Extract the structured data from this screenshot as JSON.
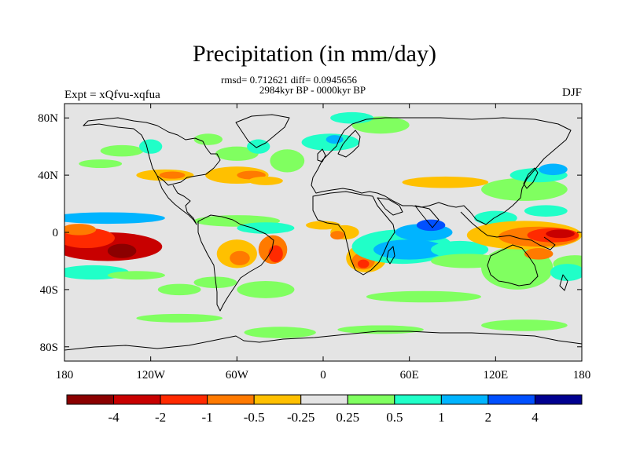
{
  "title": "Precipitation (in mm/day)",
  "stats_line1": "rmsd= 0.712621 diff= 0.0945656",
  "stats_line2": "2984kyr BP - 0000kyr BP",
  "experiment": "Expt = xQfvu-xqfua",
  "season": "DJF",
  "map": {
    "projection": "cylindrical-equidistant",
    "lon_range": [
      -180,
      180
    ],
    "lat_range": [
      -90,
      90
    ],
    "background_color": "#e4e4e4",
    "x_ticks": [
      {
        "lon": -180,
        "label": "180"
      },
      {
        "lon": -120,
        "label": "120W"
      },
      {
        "lon": -60,
        "label": "60W"
      },
      {
        "lon": 0,
        "label": "0"
      },
      {
        "lon": 60,
        "label": "60E"
      },
      {
        "lon": 120,
        "label": "120E"
      },
      {
        "lon": 180,
        "label": "180"
      }
    ],
    "y_ticks": [
      {
        "lat": 80,
        "label": "80N"
      },
      {
        "lat": 40,
        "label": "40N"
      },
      {
        "lat": 0,
        "label": "0"
      },
      {
        "lat": -40,
        "label": "40S"
      },
      {
        "lat": -80,
        "label": "80S"
      }
    ]
  },
  "colorbar": {
    "colors": [
      "#8b0000",
      "#c80000",
      "#ff2a00",
      "#ff7a00",
      "#ffc000",
      "#e4e4e4",
      "#80ff60",
      "#20ffc8",
      "#00b4ff",
      "#0050ff",
      "#000090"
    ],
    "labels": [
      "-4",
      "-2",
      "-1",
      "-0.5",
      "-0.25",
      "0.25",
      "0.5",
      "1",
      "2",
      "4"
    ]
  },
  "anomalies": [
    {
      "lon": -150,
      "lat": -10,
      "rx": 38,
      "ry": 10,
      "level": -4
    },
    {
      "lon": -165,
      "lat": -4,
      "rx": 20,
      "ry": 7,
      "level": -2
    },
    {
      "lon": -140,
      "lat": -13,
      "rx": 10,
      "ry": 5,
      "level": -5
    },
    {
      "lon": -170,
      "lat": 2,
      "rx": 12,
      "ry": 4,
      "level": -1
    },
    {
      "lon": -150,
      "lat": 10,
      "rx": 40,
      "ry": 4,
      "level": 2
    },
    {
      "lon": -160,
      "lat": -28,
      "rx": 25,
      "ry": 5,
      "level": 1
    },
    {
      "lon": -130,
      "lat": -30,
      "rx": 20,
      "ry": 3,
      "level": 0.5
    },
    {
      "lon": -110,
      "lat": 40,
      "rx": 20,
      "ry": 4,
      "level": -0.5
    },
    {
      "lon": -105,
      "lat": 40,
      "rx": 9,
      "ry": 2.5,
      "level": -1
    },
    {
      "lon": -155,
      "lat": 48,
      "rx": 15,
      "ry": 3,
      "level": 0.5
    },
    {
      "lon": -60,
      "lat": 40,
      "rx": 22,
      "ry": 6,
      "level": -0.5
    },
    {
      "lon": -50,
      "lat": 40,
      "rx": 10,
      "ry": 3,
      "level": -1
    },
    {
      "lon": -40,
      "lat": 36,
      "rx": 12,
      "ry": 3,
      "level": -0.5
    },
    {
      "lon": -60,
      "lat": 55,
      "rx": 15,
      "ry": 5,
      "level": 0.5
    },
    {
      "lon": -45,
      "lat": 60,
      "rx": 8,
      "ry": 5,
      "level": 1
    },
    {
      "lon": -25,
      "lat": 50,
      "rx": 12,
      "ry": 8,
      "level": 0.5
    },
    {
      "lon": -80,
      "lat": 65,
      "rx": 10,
      "ry": 4,
      "level": 0.5
    },
    {
      "lon": -60,
      "lat": 8,
      "rx": 30,
      "ry": 4,
      "level": 0.5
    },
    {
      "lon": -40,
      "lat": 3,
      "rx": 20,
      "ry": 4,
      "level": 1
    },
    {
      "lon": -60,
      "lat": -15,
      "rx": 14,
      "ry": 10,
      "level": -0.5
    },
    {
      "lon": -58,
      "lat": -18,
      "rx": 7,
      "ry": 5,
      "level": -1
    },
    {
      "lon": -35,
      "lat": -12,
      "rx": 10,
      "ry": 10,
      "level": -1
    },
    {
      "lon": -33,
      "lat": -15,
      "rx": 5,
      "ry": 6,
      "level": -2
    },
    {
      "lon": -75,
      "lat": -35,
      "rx": 15,
      "ry": 4,
      "level": 0.5
    },
    {
      "lon": -40,
      "lat": -40,
      "rx": 20,
      "ry": 6,
      "level": 0.5
    },
    {
      "lon": -100,
      "lat": -40,
      "rx": 15,
      "ry": 4,
      "level": 0.5
    },
    {
      "lon": 0,
      "lat": 5,
      "rx": 12,
      "ry": 3,
      "level": -0.5
    },
    {
      "lon": 15,
      "lat": 0,
      "rx": 10,
      "ry": 5,
      "level": -0.5
    },
    {
      "lon": 10,
      "lat": -2,
      "rx": 5,
      "ry": 3,
      "level": -1
    },
    {
      "lon": 30,
      "lat": -18,
      "rx": 14,
      "ry": 10,
      "level": -0.5
    },
    {
      "lon": 28,
      "lat": -20,
      "rx": 8,
      "ry": 6,
      "level": -1
    },
    {
      "lon": 28,
      "lat": -22,
      "rx": 4,
      "ry": 3,
      "level": -2
    },
    {
      "lon": 55,
      "lat": -10,
      "rx": 35,
      "ry": 12,
      "level": 1
    },
    {
      "lon": 60,
      "lat": -12,
      "rx": 25,
      "ry": 7,
      "level": 2
    },
    {
      "lon": 70,
      "lat": 0,
      "rx": 20,
      "ry": 6,
      "level": 2
    },
    {
      "lon": 75,
      "lat": 5,
      "rx": 10,
      "ry": 4,
      "level": 4
    },
    {
      "lon": 95,
      "lat": -12,
      "rx": 20,
      "ry": 6,
      "level": 1
    },
    {
      "lon": 100,
      "lat": -20,
      "rx": 25,
      "ry": 5,
      "level": 0.5
    },
    {
      "lon": 135,
      "lat": -25,
      "rx": 25,
      "ry": 15,
      "level": 0.5
    },
    {
      "lon": 120,
      "lat": 10,
      "rx": 15,
      "ry": 5,
      "level": 1
    },
    {
      "lon": 140,
      "lat": -2,
      "rx": 40,
      "ry": 10,
      "level": -0.5
    },
    {
      "lon": 150,
      "lat": -3,
      "rx": 28,
      "ry": 7,
      "level": -1
    },
    {
      "lon": 160,
      "lat": -2,
      "rx": 18,
      "ry": 5,
      "level": -2
    },
    {
      "lon": 165,
      "lat": -1,
      "rx": 10,
      "ry": 3,
      "level": -4
    },
    {
      "lon": 175,
      "lat": -22,
      "rx": 15,
      "ry": 6,
      "level": 0.5
    },
    {
      "lon": 170,
      "lat": -28,
      "rx": 12,
      "ry": 6,
      "level": 1
    },
    {
      "lon": 150,
      "lat": -15,
      "rx": 10,
      "ry": 4,
      "level": -1
    },
    {
      "lon": 140,
      "lat": 30,
      "rx": 30,
      "ry": 8,
      "level": 0.5
    },
    {
      "lon": 150,
      "lat": 40,
      "rx": 20,
      "ry": 5,
      "level": 1
    },
    {
      "lon": 160,
      "lat": 44,
      "rx": 10,
      "ry": 4,
      "level": 2
    },
    {
      "lon": 155,
      "lat": 15,
      "rx": 15,
      "ry": 4,
      "level": 1
    },
    {
      "lon": 85,
      "lat": 35,
      "rx": 30,
      "ry": 4,
      "level": -0.5
    },
    {
      "lon": 40,
      "lat": 75,
      "rx": 20,
      "ry": 6,
      "level": 0.5
    },
    {
      "lon": 20,
      "lat": 80,
      "rx": 15,
      "ry": 4,
      "level": 1
    },
    {
      "lon": 5,
      "lat": 63,
      "rx": 20,
      "ry": 6,
      "level": 1
    },
    {
      "lon": 8,
      "lat": 65,
      "rx": 6,
      "ry": 3,
      "level": 2
    },
    {
      "lon": -30,
      "lat": -70,
      "rx": 25,
      "ry": 4,
      "level": 0.5
    },
    {
      "lon": 40,
      "lat": -68,
      "rx": 30,
      "ry": 3,
      "level": 0.5
    },
    {
      "lon": 140,
      "lat": -65,
      "rx": 30,
      "ry": 4,
      "level": 0.5
    },
    {
      "lon": -100,
      "lat": -60,
      "rx": 30,
      "ry": 3,
      "level": 0.5
    },
    {
      "lon": 70,
      "lat": -45,
      "rx": 40,
      "ry": 4,
      "level": 0.5
    },
    {
      "lon": -140,
      "lat": 57,
      "rx": 15,
      "ry": 4,
      "level": 0.5
    },
    {
      "lon": -120,
      "lat": 60,
      "rx": 8,
      "ry": 5,
      "level": 1
    }
  ]
}
